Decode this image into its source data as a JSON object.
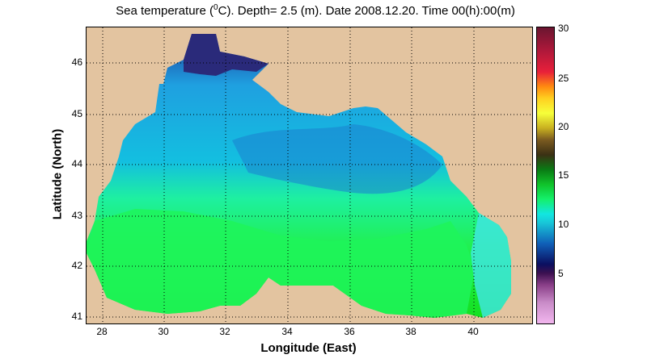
{
  "title_main": "Sea temperature (",
  "title_sup": "0",
  "title_rest": "C). Depth=  2.5 (m). Date 2008.12.20. Time 00(h):00(m)",
  "xlabel": "Longitude (East)",
  "ylabel": "Latitude (North)",
  "x_ticks": [
    "28",
    "30",
    "32",
    "34",
    "36",
    "38",
    "40"
  ],
  "y_ticks": [
    "46",
    "45",
    "44",
    "43",
    "42",
    "41"
  ],
  "colorbar_ticks": [
    "30",
    "25",
    "20",
    "15",
    "10",
    "5"
  ],
  "x_range": [
    27.45,
    41.85
  ],
  "y_range": [
    40.95,
    46.7
  ],
  "colorbar_range": [
    0,
    30
  ],
  "land_color": "#e3c4a0",
  "grid": "dotted"
}
